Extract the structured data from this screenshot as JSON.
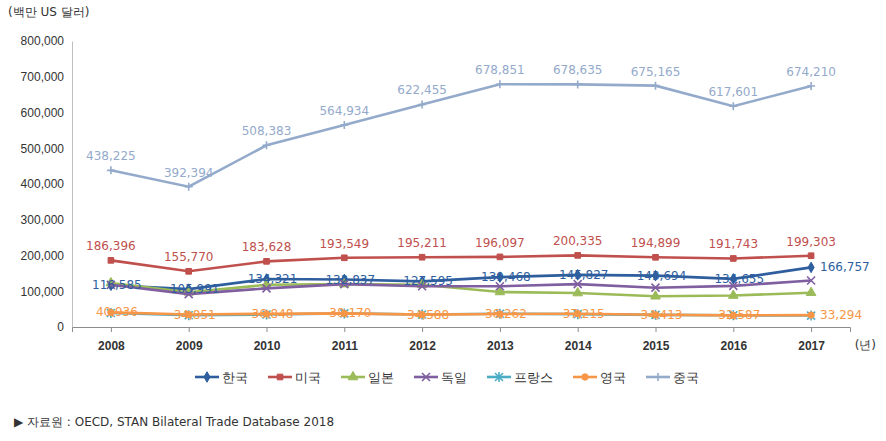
{
  "chart_data": {
    "type": "line",
    "y_label": "(백만 US 달러)",
    "x_label": "(년)",
    "source": "▶ 자료원 : OECD, STAN Bilateral Trade Database 2018",
    "categories": [
      "2008",
      "2009",
      "2010",
      "2011",
      "2012",
      "2013",
      "2014",
      "2015",
      "2016",
      "2017"
    ],
    "ylim": [
      0,
      800000
    ],
    "yticks": [
      0,
      {
        "value": 100000,
        "label": "100,000"
      },
      {
        "value": 200000,
        "label": "200,000"
      },
      {
        "value": 300000,
        "label": "300,000"
      },
      {
        "value": 400000,
        "label": "400,000"
      },
      {
        "value": 500000,
        "label": "500,000"
      },
      {
        "value": 600000,
        "label": "600,000"
      },
      {
        "value": 700000,
        "label": "700,000"
      },
      {
        "value": 800000,
        "label": "800,000"
      }
    ],
    "grid": false,
    "legend": "bottom",
    "series": [
      {
        "name": "한국",
        "color": "#2E5E9E",
        "marker": "diamond",
        "data_labels": true,
        "values": [
          116585,
          105991,
          134321,
          132837,
          127595,
          139468,
          145827,
          143694,
          134655,
          166757
        ],
        "value_labels": [
          "116,585",
          "105,991",
          "134,321",
          "132,837",
          "127,595",
          "139,468",
          "145,827",
          "143,694",
          "134,655",
          "166,757"
        ]
      },
      {
        "name": "미국",
        "color": "#C0504D",
        "marker": "square",
        "data_labels": true,
        "values": [
          186396,
          155770,
          183628,
          193549,
          195211,
          196097,
          200335,
          194899,
          191743,
          199303
        ],
        "value_labels": [
          "186,396",
          "155,770",
          "183,628",
          "193,549",
          "195,211",
          "196,097",
          "200,335",
          "194,899",
          "191,743",
          "199,303"
        ]
      },
      {
        "name": "일본",
        "color": "#9BBB59",
        "marker": "triangle",
        "data_labels": false,
        "values": [
          123000,
          97000,
          118000,
          120000,
          118000,
          98000,
          95000,
          86000,
          88000,
          96000
        ]
      },
      {
        "name": "독일",
        "color": "#7F5FA0",
        "marker": "x",
        "data_labels": false,
        "values": [
          118000,
          92000,
          108000,
          120000,
          114000,
          114000,
          120000,
          110000,
          115000,
          130000
        ]
      },
      {
        "name": "프랑스",
        "color": "#4BACC6",
        "marker": "star",
        "data_labels": false,
        "values": [
          39000,
          33000,
          35000,
          38000,
          35000,
          37000,
          36000,
          34000,
          33000,
          32000
        ]
      },
      {
        "name": "영국",
        "color": "#F79646",
        "marker": "circle",
        "data_labels": true,
        "values": [
          40936,
          34851,
          36848,
          38170,
          34588,
          36262,
          37215,
          34413,
          32587,
          33294
        ],
        "value_labels": [
          "40,936",
          "34,851",
          "36,848",
          "38,170",
          "34,588",
          "36,262",
          "37,215",
          "34,413",
          "32,587",
          "33,294"
        ]
      },
      {
        "name": "중국",
        "color": "#94AACB",
        "marker": "plus",
        "data_labels": true,
        "values": [
          438225,
          392394,
          508383,
          564934,
          622455,
          678851,
          678635,
          675165,
          617601,
          674210
        ],
        "value_labels": [
          "438,225",
          "392,394",
          "508,383",
          "564,934",
          "622,455",
          "678,851",
          "678,635",
          "675,165",
          "617,601",
          "674,210"
        ]
      }
    ]
  }
}
